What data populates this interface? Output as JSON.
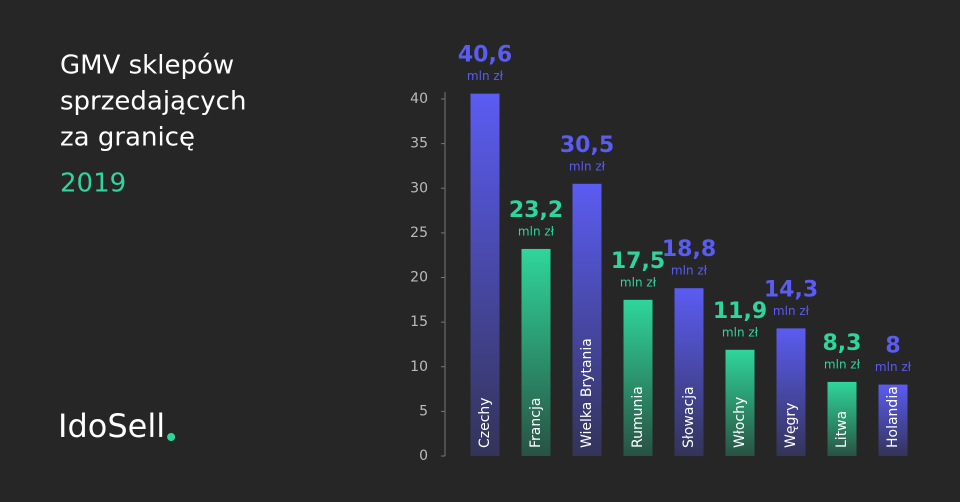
{
  "chart_data": {
    "type": "bar",
    "title": "GMV sklepów sprzedających za granicę",
    "subtitle": "2019",
    "brand": "IdoSell",
    "unit": "mln zł",
    "categories": [
      "Czechy",
      "Francja",
      "Wielka Brytania",
      "Rumunia",
      "Słowacja",
      "Włochy",
      "Węgry",
      "Litwa",
      "Holandia"
    ],
    "values": [
      40.6,
      23.2,
      30.5,
      17.5,
      18.8,
      11.9,
      14.3,
      8.3,
      8
    ],
    "value_labels": [
      "40,6",
      "23,2",
      "30,5",
      "17,5",
      "18,8",
      "11,9",
      "14,3",
      "8,3",
      "8"
    ],
    "colors": [
      "#5b5cf2",
      "#2fd69b",
      "#5b5cf2",
      "#2fd69b",
      "#5b5cf2",
      "#2fd69b",
      "#5b5cf2",
      "#2fd69b",
      "#5b5cf2"
    ],
    "ylim": [
      0,
      40
    ],
    "yticks": [
      0,
      5,
      10,
      15,
      20,
      25,
      30,
      35,
      40
    ],
    "grid": false
  }
}
